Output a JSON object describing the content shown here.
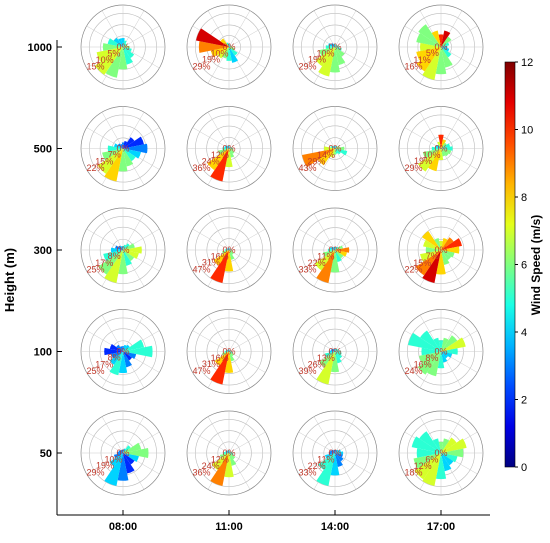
{
  "chart_data": {
    "type": "windrose_grid",
    "ylabel": "Height (m)",
    "colorbar_label": "Wind Speed (m/s)",
    "clim": [
      0,
      12
    ],
    "cticks": [
      0,
      2,
      4,
      6,
      8,
      10,
      12
    ],
    "columns": [
      "08:00",
      "11:00",
      "14:00",
      "17:00"
    ],
    "rows": [
      "1000",
      "500",
      "300",
      "100",
      "50"
    ],
    "roses": [
      [
        {
          "rticks": [
            {
              "value": 0,
              "label": "0%"
            },
            {
              "value": 5,
              "label": "5%"
            },
            {
              "value": 10,
              "label": "10%"
            },
            {
              "value": 15,
              "label": "15%"
            }
          ],
          "values": [
            4,
            3,
            2,
            2,
            3,
            4,
            6,
            8,
            10,
            14,
            15,
            12,
            9,
            7,
            5,
            4
          ],
          "speeds": [
            4,
            5,
            5,
            6,
            6,
            5,
            5,
            5,
            6,
            6,
            7,
            7,
            6,
            5,
            4,
            4
          ]
        },
        {
          "rticks": [
            {
              "value": 0,
              "label": "0%"
            },
            {
              "value": 10,
              "label": "10%"
            },
            {
              "value": 19,
              "label": "19%"
            },
            {
              "value": 29,
              "label": "29%"
            }
          ],
          "values": [
            3,
            2,
            2,
            2,
            3,
            5,
            9,
            14,
            12,
            10,
            12,
            16,
            26,
            29,
            9,
            4
          ],
          "speeds": [
            4,
            4,
            5,
            5,
            6,
            6,
            5,
            4,
            5,
            6,
            7,
            8,
            9,
            11,
            8,
            5
          ]
        },
        {
          "rticks": [
            {
              "value": 0,
              "label": "0%"
            },
            {
              "value": 10,
              "label": "10%"
            },
            {
              "value": 19,
              "label": "19%"
            },
            {
              "value": 29,
              "label": "29%"
            }
          ],
          "values": [
            3,
            2,
            2,
            3,
            4,
            6,
            10,
            16,
            22,
            26,
            20,
            14,
            8,
            6,
            4,
            3
          ],
          "speeds": [
            5,
            4,
            4,
            5,
            5,
            5,
            6,
            6,
            6,
            7,
            7,
            6,
            5,
            4,
            3,
            4
          ]
        },
        {
          "rticks": [
            {
              "value": 0,
              "label": "0%"
            },
            {
              "value": 5,
              "label": "5%"
            },
            {
              "value": 11,
              "label": "11%"
            },
            {
              "value": 16,
              "label": "16%"
            }
          ],
          "values": [
            6,
            8,
            6,
            4,
            3,
            4,
            6,
            10,
            13,
            16,
            14,
            12,
            10,
            12,
            13,
            8
          ],
          "speeds": [
            10,
            11,
            6,
            5,
            4,
            4,
            5,
            6,
            6,
            7,
            8,
            8,
            7,
            6,
            6,
            8
          ]
        }
      ],
      [
        {
          "rticks": [
            {
              "value": 0,
              "label": "0%"
            },
            {
              "value": 7,
              "label": "7%"
            },
            {
              "value": 15,
              "label": "15%"
            },
            {
              "value": 22,
              "label": "22%"
            }
          ],
          "values": [
            4,
            5,
            9,
            14,
            16,
            12,
            10,
            12,
            15,
            22,
            20,
            14,
            10,
            6,
            4,
            3
          ],
          "speeds": [
            3,
            2,
            2,
            2,
            3,
            4,
            5,
            6,
            6,
            8,
            7,
            6,
            5,
            4,
            3,
            3
          ]
        },
        {
          "rticks": [
            {
              "value": 0,
              "label": "0%"
            },
            {
              "value": 12,
              "label": "12%"
            },
            {
              "value": 24,
              "label": "24%"
            },
            {
              "value": 36,
              "label": "36%"
            }
          ],
          "values": [
            3,
            2,
            2,
            3,
            4,
            5,
            7,
            10,
            20,
            36,
            28,
            12,
            7,
            5,
            4,
            3
          ],
          "speeds": [
            4,
            4,
            5,
            5,
            5,
            6,
            6,
            6,
            7,
            10,
            8,
            6,
            5,
            4,
            4,
            4
          ]
        },
        {
          "rticks": [
            {
              "value": 0,
              "label": "0%"
            },
            {
              "value": 14,
              "label": "14%"
            },
            {
              "value": 29,
              "label": "29%"
            },
            {
              "value": 43,
              "label": "43%"
            }
          ],
          "values": [
            3,
            3,
            4,
            6,
            12,
            16,
            9,
            7,
            8,
            12,
            26,
            43,
            14,
            6,
            4,
            3
          ],
          "speeds": [
            4,
            4,
            5,
            6,
            6,
            5,
            5,
            5,
            6,
            7,
            8,
            9,
            7,
            5,
            4,
            4
          ]
        },
        {
          "rticks": [
            {
              "value": 0,
              "label": "0%"
            },
            {
              "value": 10,
              "label": "10%"
            },
            {
              "value": 19,
              "label": "19%"
            },
            {
              "value": 29,
              "label": "29%"
            }
          ],
          "values": [
            12,
            8,
            6,
            8,
            10,
            9,
            8,
            7,
            10,
            20,
            24,
            16,
            8,
            5,
            4,
            6
          ],
          "speeds": [
            10,
            8,
            6,
            5,
            5,
            6,
            6,
            6,
            7,
            8,
            7,
            6,
            5,
            4,
            4,
            7
          ]
        }
      ],
      [
        {
          "rticks": [
            {
              "value": 0,
              "label": "0%"
            },
            {
              "value": 8,
              "label": "8%"
            },
            {
              "value": 17,
              "label": "17%"
            },
            {
              "value": 25,
              "label": "25%"
            }
          ],
          "values": [
            3,
            4,
            6,
            9,
            14,
            12,
            10,
            12,
            18,
            25,
            22,
            15,
            9,
            6,
            4,
            3
          ],
          "speeds": [
            4,
            5,
            5,
            6,
            7,
            7,
            6,
            5,
            6,
            7,
            6,
            5,
            4,
            3,
            3,
            4
          ]
        },
        {
          "rticks": [
            {
              "value": 0,
              "label": "0%"
            },
            {
              "value": 16,
              "label": "16%"
            },
            {
              "value": 31,
              "label": "31%"
            },
            {
              "value": 47,
              "label": "47%"
            }
          ],
          "values": [
            3,
            2,
            2,
            3,
            4,
            5,
            8,
            14,
            30,
            47,
            26,
            10,
            6,
            4,
            3,
            3
          ],
          "speeds": [
            4,
            4,
            4,
            5,
            5,
            6,
            6,
            6,
            8,
            10,
            8,
            6,
            5,
            4,
            4,
            4
          ]
        },
        {
          "rticks": [
            {
              "value": 0,
              "label": "0%"
            },
            {
              "value": 11,
              "label": "11%"
            },
            {
              "value": 22,
              "label": "22%"
            },
            {
              "value": 33,
              "label": "33%"
            }
          ],
          "values": [
            3,
            3,
            4,
            8,
            14,
            12,
            10,
            12,
            22,
            33,
            24,
            12,
            7,
            5,
            4,
            3
          ],
          "speeds": [
            4,
            4,
            5,
            6,
            9,
            8,
            6,
            5,
            6,
            9,
            7,
            6,
            5,
            4,
            4,
            4
          ]
        },
        {
          "rticks": [
            {
              "value": 0,
              "label": "0%"
            },
            {
              "value": 7,
              "label": "7%"
            },
            {
              "value": 15,
              "label": "15%"
            },
            {
              "value": 22,
              "label": "22%"
            }
          ],
          "values": [
            6,
            8,
            10,
            14,
            12,
            9,
            8,
            10,
            16,
            22,
            20,
            14,
            10,
            12,
            15,
            8
          ],
          "speeds": [
            7,
            8,
            9,
            10,
            8,
            6,
            6,
            6,
            8,
            11,
            9,
            7,
            6,
            7,
            8,
            6
          ]
        }
      ],
      [
        {
          "rticks": [
            {
              "value": 0,
              "label": "0%"
            },
            {
              "value": 8,
              "label": "8%"
            },
            {
              "value": 17,
              "label": "17%"
            },
            {
              "value": 25,
              "label": "25%"
            }
          ],
          "values": [
            4,
            5,
            6,
            16,
            22,
            10,
            8,
            12,
            16,
            18,
            12,
            9,
            14,
            10,
            6,
            4
          ],
          "speeds": [
            3,
            4,
            4,
            5,
            5,
            3,
            2,
            3,
            4,
            5,
            4,
            3,
            2,
            2,
            3,
            3
          ]
        },
        {
          "rticks": [
            {
              "value": 0,
              "label": "0%"
            },
            {
              "value": 16,
              "label": "16%"
            },
            {
              "value": 31,
              "label": "31%"
            },
            {
              "value": 47,
              "label": "47%"
            }
          ],
          "values": [
            3,
            2,
            2,
            3,
            4,
            5,
            8,
            14,
            30,
            47,
            24,
            10,
            6,
            4,
            3,
            3
          ],
          "speeds": [
            4,
            4,
            4,
            5,
            5,
            5,
            6,
            6,
            8,
            10,
            8,
            6,
            5,
            4,
            4,
            4
          ]
        },
        {
          "rticks": [
            {
              "value": 0,
              "label": "0%"
            },
            {
              "value": 13,
              "label": "13%"
            },
            {
              "value": 26,
              "label": "26%"
            },
            {
              "value": 39,
              "label": "39%"
            }
          ],
          "values": [
            3,
            3,
            4,
            5,
            7,
            8,
            10,
            14,
            24,
            39,
            22,
            12,
            7,
            5,
            4,
            3
          ],
          "speeds": [
            4,
            4,
            5,
            5,
            5,
            5,
            5,
            5,
            6,
            7,
            6,
            5,
            4,
            3,
            3,
            4
          ]
        },
        {
          "rticks": [
            {
              "value": 0,
              "label": "0%"
            },
            {
              "value": 8,
              "label": "8%"
            },
            {
              "value": 16,
              "label": "16%"
            },
            {
              "value": 24,
              "label": "24%"
            }
          ],
          "values": [
            8,
            10,
            14,
            18,
            12,
            8,
            6,
            8,
            12,
            18,
            20,
            16,
            14,
            24,
            18,
            10
          ],
          "speeds": [
            5,
            6,
            6,
            7,
            5,
            4,
            4,
            4,
            5,
            6,
            6,
            6,
            5,
            5,
            5,
            5
          ]
        }
      ],
      [
        {
          "rticks": [
            {
              "value": 0,
              "label": "0%"
            },
            {
              "value": 10,
              "label": "10%"
            },
            {
              "value": 19,
              "label": "19%"
            },
            {
              "value": 29,
              "label": "29%"
            }
          ],
          "values": [
            3,
            4,
            8,
            16,
            22,
            14,
            12,
            18,
            24,
            29,
            14,
            8,
            5,
            4,
            3,
            3
          ],
          "speeds": [
            3,
            4,
            5,
            6,
            6,
            4,
            2,
            2,
            3,
            4,
            4,
            3,
            3,
            3,
            3,
            3
          ]
        },
        {
          "rticks": [
            {
              "value": 0,
              "label": "0%"
            },
            {
              "value": 12,
              "label": "12%"
            },
            {
              "value": 24,
              "label": "24%"
            },
            {
              "value": 36,
              "label": "36%"
            }
          ],
          "values": [
            3,
            2,
            2,
            3,
            4,
            5,
            8,
            14,
            26,
            36,
            22,
            10,
            6,
            4,
            3,
            3
          ],
          "speeds": [
            4,
            4,
            4,
            5,
            5,
            5,
            6,
            6,
            7,
            9,
            7,
            6,
            5,
            4,
            4,
            4
          ]
        },
        {
          "rticks": [
            {
              "value": 0,
              "label": "0%"
            },
            {
              "value": 11,
              "label": "11%"
            },
            {
              "value": 22,
              "label": "22%"
            },
            {
              "value": 33,
              "label": "33%"
            }
          ],
          "values": [
            3,
            3,
            4,
            6,
            8,
            8,
            10,
            14,
            22,
            33,
            20,
            10,
            6,
            5,
            4,
            3
          ],
          "speeds": [
            3,
            3,
            4,
            4,
            4,
            3,
            3,
            3,
            4,
            5,
            5,
            4,
            3,
            3,
            3,
            3
          ]
        },
        {
          "rticks": [
            {
              "value": 0,
              "label": "0%"
            },
            {
              "value": 6,
              "label": "6%"
            },
            {
              "value": 12,
              "label": "12%"
            },
            {
              "value": 18,
              "label": "18%"
            }
          ],
          "values": [
            6,
            8,
            10,
            14,
            12,
            9,
            8,
            10,
            14,
            18,
            17,
            15,
            13,
            16,
            14,
            8
          ],
          "speeds": [
            6,
            6,
            7,
            7,
            6,
            5,
            4,
            4,
            5,
            7,
            7,
            6,
            5,
            5,
            5,
            5
          ]
        }
      ]
    ]
  }
}
